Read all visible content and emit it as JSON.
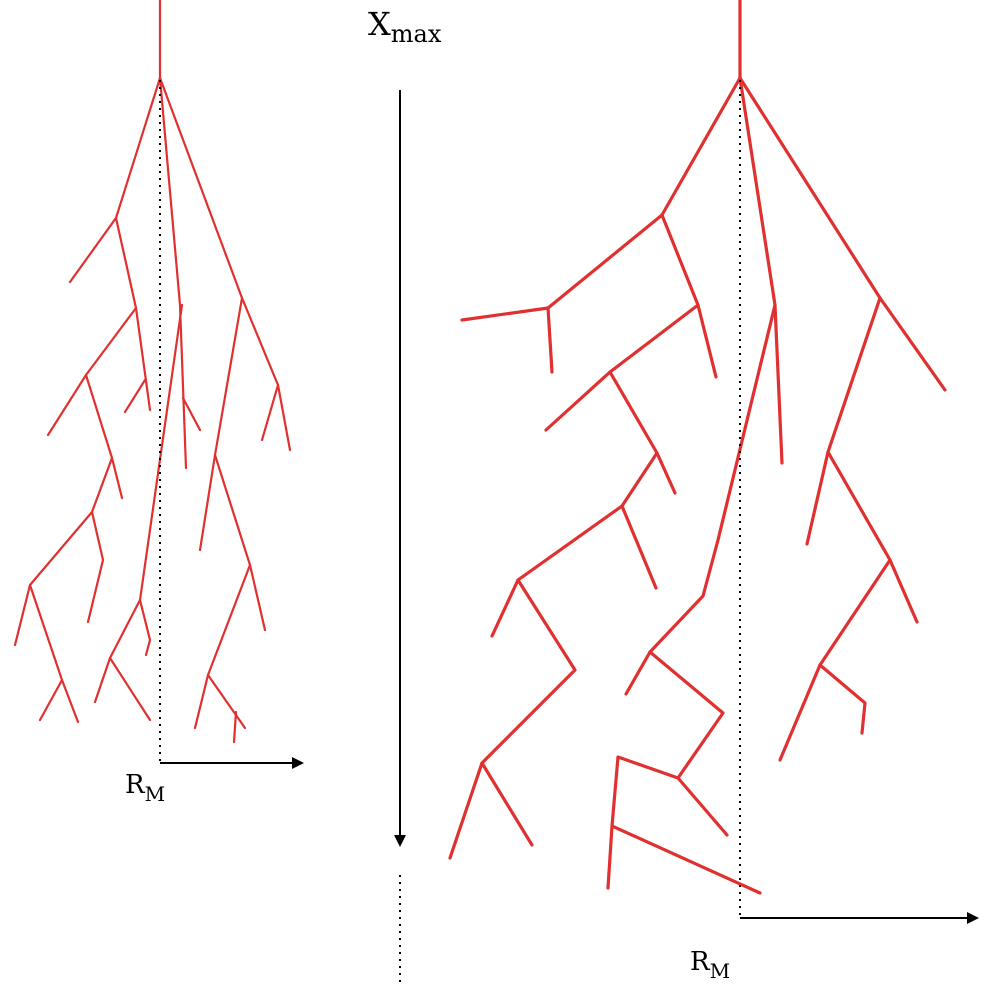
{
  "labels": {
    "x_main": "X",
    "x_sub": "max",
    "r_left_main": "R",
    "r_left_sub": "M",
    "r_right_main": "R",
    "r_right_sub": "M"
  },
  "colors": {
    "branch": "#e03030",
    "axis": "#000000",
    "background": "#ffffff"
  }
}
